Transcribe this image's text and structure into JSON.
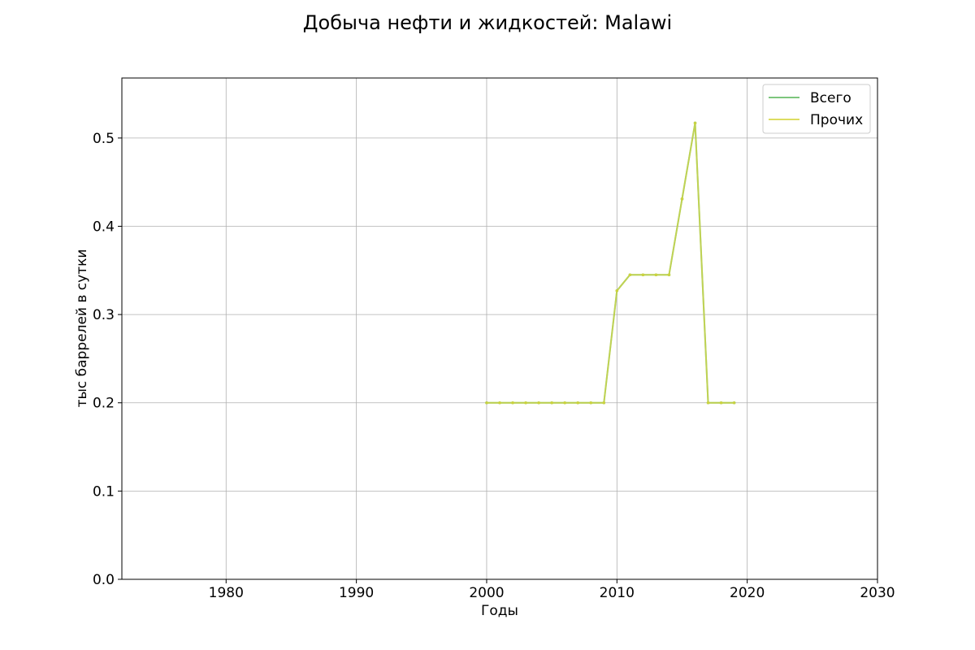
{
  "chart_data": {
    "type": "line",
    "title": "Добыча нефти и жидкостей: Malawi",
    "xlabel": "Годы",
    "ylabel": "тыс баррелей в сутки",
    "xlim": [
      1972,
      2030
    ],
    "ylim": [
      0,
      0.568
    ],
    "xticks": [
      1980,
      1990,
      2000,
      2010,
      2020,
      2030
    ],
    "yticks": [
      0.0,
      0.1,
      0.2,
      0.3,
      0.4,
      0.5
    ],
    "grid": true,
    "legend_position": "top-right",
    "x": [
      2000,
      2001,
      2002,
      2003,
      2004,
      2005,
      2006,
      2007,
      2008,
      2009,
      2010,
      2011,
      2012,
      2013,
      2014,
      2015,
      2016,
      2017,
      2018,
      2019
    ],
    "series": [
      {
        "name": "Всего",
        "color": "#5cb85c",
        "values": [
          0.2,
          0.2,
          0.2,
          0.2,
          0.2,
          0.2,
          0.2,
          0.2,
          0.2,
          0.2,
          0.327,
          0.345,
          0.345,
          0.345,
          0.345,
          0.431,
          0.517,
          0.2,
          0.2,
          0.2
        ]
      },
      {
        "name": "Прочих",
        "color": "#d4d43a",
        "values": [
          0.2,
          0.2,
          0.2,
          0.2,
          0.2,
          0.2,
          0.2,
          0.2,
          0.2,
          0.2,
          0.327,
          0.345,
          0.345,
          0.345,
          0.345,
          0.431,
          0.517,
          0.2,
          0.2,
          0.2
        ]
      }
    ]
  }
}
